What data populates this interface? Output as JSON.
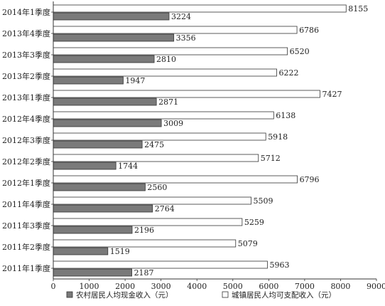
{
  "chart_data": {
    "type": "bar",
    "orientation": "horizontal",
    "categories": [
      "2014年1季度",
      "2013年4季度",
      "2013年3季度",
      "2013年2季度",
      "2013年1季度",
      "2012年4季度",
      "2012年3季度",
      "2012年2季度",
      "2012年1季度",
      "2011年4季度",
      "2011年3季度",
      "2011年2季度",
      "2011年1季度"
    ],
    "series": [
      {
        "name": "城镇居民人均可支配收入（元）",
        "color": "#ffffff",
        "values": [
          8155,
          6786,
          6520,
          6222,
          7427,
          6138,
          5918,
          5712,
          6796,
          5509,
          5259,
          5079,
          5963
        ]
      },
      {
        "name": "农村居民人均现金收入（元）",
        "color": "#7a7a7a",
        "values": [
          3224,
          3356,
          2810,
          1947,
          2871,
          3009,
          2475,
          1744,
          2560,
          2764,
          2196,
          1519,
          2187
        ]
      }
    ],
    "xlim": [
      0,
      9000
    ],
    "xticks": [
      0,
      1000,
      2000,
      3000,
      4000,
      5000,
      6000,
      7000,
      8000,
      9000
    ],
    "grid": false,
    "legend": {
      "placement": "bottom",
      "entries": [
        "农村居民人均现金收入（元）",
        "城镇居民人均可支配收入（元）"
      ]
    },
    "title": "",
    "xlabel": "",
    "ylabel": ""
  }
}
